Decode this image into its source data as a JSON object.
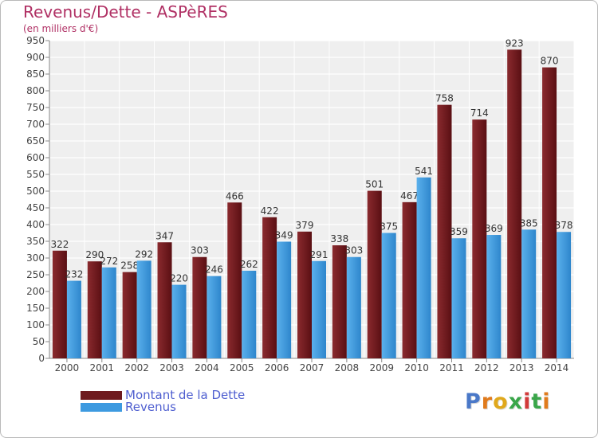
{
  "header": {
    "title": "Revenus/Dette - ASPèRES",
    "subtitle": "(en milliers d'€)"
  },
  "legend": {
    "items": [
      {
        "label": "Montant de la Dette",
        "color": "#6e1a1e"
      },
      {
        "label": "Revenus",
        "color": "#3d9ae0"
      }
    ]
  },
  "logo": {
    "text": "Proxiti",
    "letter_colors": [
      "#4a78c8",
      "#e07a1c",
      "#e0a81c",
      "#3aa64a",
      "#d23a3a",
      "#3aa64a",
      "#e07a1c"
    ]
  },
  "chart_data": {
    "type": "bar",
    "categories": [
      "2000",
      "2001",
      "2002",
      "2003",
      "2004",
      "2005",
      "2006",
      "2007",
      "2008",
      "2009",
      "2010",
      "2011",
      "2012",
      "2013",
      "2014"
    ],
    "series": [
      {
        "name": "Montant de la Dette",
        "color": "#7a2226",
        "values": [
          322,
          290,
          258,
          347,
          303,
          466,
          422,
          379,
          338,
          501,
          467,
          758,
          714,
          923,
          870
        ]
      },
      {
        "name": "Revenus",
        "color": "#3d9ae0",
        "values": [
          232,
          272,
          292,
          220,
          246,
          262,
          349,
          291,
          303,
          375,
          541,
          359,
          369,
          385,
          378
        ]
      }
    ],
    "ylim": [
      0,
      950
    ],
    "yticks": [
      0,
      50,
      100,
      150,
      200,
      250,
      300,
      350,
      400,
      450,
      500,
      550,
      600,
      650,
      700,
      750,
      800,
      850,
      900,
      950
    ],
    "grid": true,
    "data_labels": true,
    "legend_position": "bottom-left"
  }
}
